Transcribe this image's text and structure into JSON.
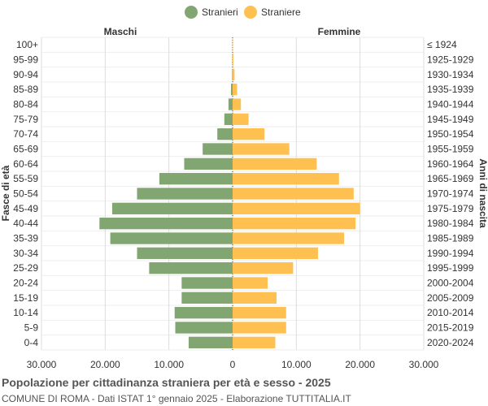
{
  "chart_data": {
    "type": "bar",
    "orientation": "horizontal-population-pyramid",
    "legend": {
      "position": "top-center",
      "items": [
        "Stranieri",
        "Straniere"
      ]
    },
    "left_header": "Maschi",
    "right_header": "Femmine",
    "ylabel_left": "Fasce di età",
    "ylabel_right": "Anni di nascita",
    "xlim": [
      -30000,
      30000
    ],
    "xticks": [
      "30.000",
      "20.000",
      "10.000",
      "0",
      "10.000",
      "20.000",
      "30.000"
    ],
    "grid": true,
    "colors": {
      "male": "#82a672",
      "female": "#fec050"
    },
    "categories": [
      "100+",
      "95-99",
      "90-94",
      "85-89",
      "80-84",
      "75-79",
      "70-74",
      "65-69",
      "60-64",
      "55-59",
      "50-54",
      "45-49",
      "40-44",
      "35-39",
      "30-34",
      "25-29",
      "20-24",
      "15-19",
      "10-14",
      "5-9",
      "0-4"
    ],
    "birth_years": [
      "≤ 1924",
      "1925-1929",
      "1930-1934",
      "1935-1939",
      "1940-1944",
      "1945-1949",
      "1950-1954",
      "1955-1959",
      "1960-1964",
      "1965-1969",
      "1970-1974",
      "1975-1979",
      "1980-1984",
      "1985-1989",
      "1990-1994",
      "1995-1999",
      "2000-2004",
      "2005-2009",
      "2010-2014",
      "2015-2019",
      "2020-2024"
    ],
    "series": [
      {
        "name": "Stranieri",
        "values": [
          10,
          30,
          80,
          250,
          650,
          1300,
          2400,
          4700,
          7600,
          11500,
          15000,
          18900,
          20900,
          19200,
          15000,
          13100,
          8000,
          8000,
          9100,
          9000,
          6900
        ]
      },
      {
        "name": "Straniere",
        "values": [
          40,
          120,
          300,
          700,
          1300,
          2500,
          5000,
          8900,
          13200,
          16700,
          19000,
          20000,
          19300,
          17500,
          13400,
          9500,
          5500,
          6900,
          8400,
          8400,
          6700
        ]
      }
    ]
  },
  "footer": {
    "title": "Popolazione per cittadinanza straniera per età e sesso - 2025",
    "subtitle": "COMUNE DI ROMA - Dati ISTAT 1° gennaio 2025 - Elaborazione TUTTITALIA.IT"
  }
}
